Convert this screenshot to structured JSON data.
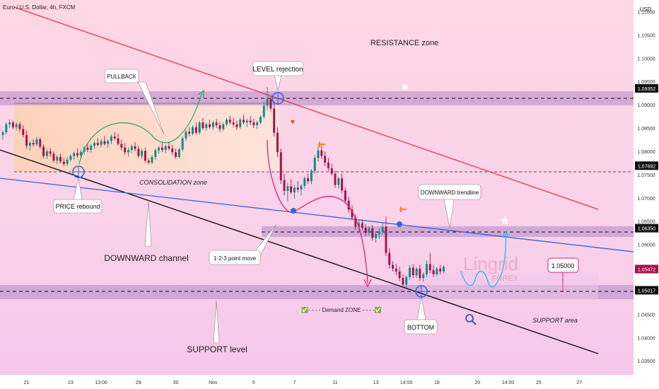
{
  "header": {
    "title": "Euro / U.S. Dollar, 4h, FXCM",
    "currency": "USD"
  },
  "chart_data": {
    "type": "candlestick",
    "y_ticks": [
      "1.11000",
      "1.10500",
      "1.10000",
      "1.09500",
      "1.09000",
      "1.08500",
      "1.08000",
      "1.07500",
      "1.07000",
      "1.06500",
      "1.06000",
      "1.05500",
      "1.05000",
      "1.04500",
      "1.04000",
      "1.03500"
    ],
    "y_tick_values": [
      1.11,
      1.105,
      1.1,
      1.095,
      1.09,
      1.085,
      1.08,
      1.075,
      1.07,
      1.065,
      1.06,
      1.055,
      1.05,
      1.045,
      1.04,
      1.035
    ],
    "x_ticks": [
      "21",
      "23",
      "13:00",
      "28",
      "30",
      "Nov",
      "5",
      "7",
      "11",
      "13",
      "14:00",
      "18",
      "20",
      "14:00",
      "25",
      "27"
    ],
    "x_tick_index": [
      7,
      20,
      29,
      40,
      51,
      62,
      74,
      86,
      98,
      110,
      119,
      128,
      140,
      149,
      158,
      170
    ],
    "ylim": [
      1.032,
      1.1125
    ],
    "xlim": [
      0,
      186
    ],
    "candles": [
      {
        "o": 1.0835,
        "h": 1.0845,
        "l": 1.0825,
        "c": 1.0841
      },
      {
        "o": 1.0841,
        "h": 1.0862,
        "l": 1.0836,
        "c": 1.0858
      },
      {
        "o": 1.0858,
        "h": 1.0868,
        "l": 1.085,
        "c": 1.0862
      },
      {
        "o": 1.0862,
        "h": 1.0866,
        "l": 1.0848,
        "c": 1.0852
      },
      {
        "o": 1.0852,
        "h": 1.0862,
        "l": 1.0845,
        "c": 1.0858
      },
      {
        "o": 1.0858,
        "h": 1.0863,
        "l": 1.0842,
        "c": 1.0848
      },
      {
        "o": 1.0848,
        "h": 1.0856,
        "l": 1.083,
        "c": 1.0835
      },
      {
        "o": 1.0835,
        "h": 1.0845,
        "l": 1.0805,
        "c": 1.0812
      },
      {
        "o": 1.0812,
        "h": 1.0822,
        "l": 1.0802,
        "c": 1.0818
      },
      {
        "o": 1.0818,
        "h": 1.0826,
        "l": 1.081,
        "c": 1.0815
      },
      {
        "o": 1.0815,
        "h": 1.0831,
        "l": 1.081,
        "c": 1.0826
      },
      {
        "o": 1.0826,
        "h": 1.083,
        "l": 1.0805,
        "c": 1.081
      },
      {
        "o": 1.081,
        "h": 1.0815,
        "l": 1.0785,
        "c": 1.079
      },
      {
        "o": 1.079,
        "h": 1.0805,
        "l": 1.0784,
        "c": 1.08
      },
      {
        "o": 1.08,
        "h": 1.0808,
        "l": 1.0788,
        "c": 1.0795
      },
      {
        "o": 1.0795,
        "h": 1.08,
        "l": 1.0776,
        "c": 1.078
      },
      {
        "o": 1.078,
        "h": 1.0792,
        "l": 1.0772,
        "c": 1.0788
      },
      {
        "o": 1.0788,
        "h": 1.0795,
        "l": 1.0774,
        "c": 1.0778
      },
      {
        "o": 1.0778,
        "h": 1.0786,
        "l": 1.0768,
        "c": 1.0773
      },
      {
        "o": 1.0773,
        "h": 1.0788,
        "l": 1.0768,
        "c": 1.0782
      },
      {
        "o": 1.0782,
        "h": 1.0794,
        "l": 1.0778,
        "c": 1.079
      },
      {
        "o": 1.079,
        "h": 1.08,
        "l": 1.0782,
        "c": 1.0796
      },
      {
        "o": 1.0796,
        "h": 1.0806,
        "l": 1.0786,
        "c": 1.0791
      },
      {
        "o": 1.0791,
        "h": 1.0803,
        "l": 1.0785,
        "c": 1.0799
      },
      {
        "o": 1.0799,
        "h": 1.0812,
        "l": 1.0793,
        "c": 1.0808
      },
      {
        "o": 1.0808,
        "h": 1.0816,
        "l": 1.0798,
        "c": 1.0803
      },
      {
        "o": 1.0803,
        "h": 1.0815,
        "l": 1.0797,
        "c": 1.0812
      },
      {
        "o": 1.0812,
        "h": 1.0822,
        "l": 1.0805,
        "c": 1.0818
      },
      {
        "o": 1.0818,
        "h": 1.0828,
        "l": 1.081,
        "c": 1.0814
      },
      {
        "o": 1.0814,
        "h": 1.0826,
        "l": 1.0808,
        "c": 1.0822
      },
      {
        "o": 1.0822,
        "h": 1.0832,
        "l": 1.0812,
        "c": 1.0816
      },
      {
        "o": 1.0816,
        "h": 1.0826,
        "l": 1.0808,
        "c": 1.0822
      },
      {
        "o": 1.0822,
        "h": 1.0836,
        "l": 1.0816,
        "c": 1.0832
      },
      {
        "o": 1.0832,
        "h": 1.0842,
        "l": 1.0824,
        "c": 1.0828
      },
      {
        "o": 1.0828,
        "h": 1.0838,
        "l": 1.0812,
        "c": 1.0816
      },
      {
        "o": 1.0816,
        "h": 1.0825,
        "l": 1.0802,
        "c": 1.0808
      },
      {
        "o": 1.0808,
        "h": 1.0818,
        "l": 1.0792,
        "c": 1.0798
      },
      {
        "o": 1.0798,
        "h": 1.0808,
        "l": 1.0788,
        "c": 1.0803
      },
      {
        "o": 1.0803,
        "h": 1.0815,
        "l": 1.0796,
        "c": 1.0811
      },
      {
        "o": 1.0811,
        "h": 1.082,
        "l": 1.08,
        "c": 1.0805
      },
      {
        "o": 1.0805,
        "h": 1.0812,
        "l": 1.0786,
        "c": 1.079
      },
      {
        "o": 1.079,
        "h": 1.0806,
        "l": 1.0784,
        "c": 1.0801
      },
      {
        "o": 1.0801,
        "h": 1.0808,
        "l": 1.0776,
        "c": 1.078
      },
      {
        "o": 1.078,
        "h": 1.0786,
        "l": 1.0772,
        "c": 1.0776
      },
      {
        "o": 1.0776,
        "h": 1.0792,
        "l": 1.0772,
        "c": 1.0788
      },
      {
        "o": 1.0788,
        "h": 1.0806,
        "l": 1.0782,
        "c": 1.0802
      },
      {
        "o": 1.0802,
        "h": 1.0812,
        "l": 1.0795,
        "c": 1.0808
      },
      {
        "o": 1.0808,
        "h": 1.0818,
        "l": 1.0798,
        "c": 1.0803
      },
      {
        "o": 1.0803,
        "h": 1.0815,
        "l": 1.0796,
        "c": 1.0811
      },
      {
        "o": 1.0811,
        "h": 1.082,
        "l": 1.0802,
        "c": 1.0806
      },
      {
        "o": 1.0806,
        "h": 1.0814,
        "l": 1.0792,
        "c": 1.0798
      },
      {
        "o": 1.0798,
        "h": 1.0806,
        "l": 1.0784,
        "c": 1.0788
      },
      {
        "o": 1.0788,
        "h": 1.0808,
        "l": 1.0784,
        "c": 1.0804
      },
      {
        "o": 1.0804,
        "h": 1.0832,
        "l": 1.08,
        "c": 1.0828
      },
      {
        "o": 1.0828,
        "h": 1.0846,
        "l": 1.0822,
        "c": 1.0842
      },
      {
        "o": 1.0842,
        "h": 1.0852,
        "l": 1.0832,
        "c": 1.0838
      },
      {
        "o": 1.0838,
        "h": 1.0856,
        "l": 1.0834,
        "c": 1.0852
      },
      {
        "o": 1.0852,
        "h": 1.0862,
        "l": 1.0836,
        "c": 1.084
      },
      {
        "o": 1.084,
        "h": 1.0866,
        "l": 1.0836,
        "c": 1.0862
      },
      {
        "o": 1.0862,
        "h": 1.0872,
        "l": 1.0846,
        "c": 1.085
      },
      {
        "o": 1.085,
        "h": 1.0862,
        "l": 1.0844,
        "c": 1.0858
      },
      {
        "o": 1.0858,
        "h": 1.0868,
        "l": 1.0848,
        "c": 1.0852
      },
      {
        "o": 1.0852,
        "h": 1.0866,
        "l": 1.0846,
        "c": 1.0862
      },
      {
        "o": 1.0862,
        "h": 1.087,
        "l": 1.085,
        "c": 1.0856
      },
      {
        "o": 1.0856,
        "h": 1.0864,
        "l": 1.0842,
        "c": 1.0848
      },
      {
        "o": 1.0848,
        "h": 1.0862,
        "l": 1.0844,
        "c": 1.0858
      },
      {
        "o": 1.0858,
        "h": 1.0872,
        "l": 1.0854,
        "c": 1.0868
      },
      {
        "o": 1.0868,
        "h": 1.0876,
        "l": 1.0858,
        "c": 1.0862
      },
      {
        "o": 1.0862,
        "h": 1.0872,
        "l": 1.0852,
        "c": 1.0858
      },
      {
        "o": 1.0858,
        "h": 1.0866,
        "l": 1.0846,
        "c": 1.0852
      },
      {
        "o": 1.0852,
        "h": 1.0872,
        "l": 1.0848,
        "c": 1.0868
      },
      {
        "o": 1.0868,
        "h": 1.0878,
        "l": 1.0858,
        "c": 1.0862
      },
      {
        "o": 1.0862,
        "h": 1.087,
        "l": 1.0852,
        "c": 1.0866
      },
      {
        "o": 1.0866,
        "h": 1.0876,
        "l": 1.0856,
        "c": 1.0862
      },
      {
        "o": 1.0862,
        "h": 1.087,
        "l": 1.085,
        "c": 1.0856
      },
      {
        "o": 1.0856,
        "h": 1.0866,
        "l": 1.0848,
        "c": 1.0862
      },
      {
        "o": 1.0862,
        "h": 1.0878,
        "l": 1.0858,
        "c": 1.0874
      },
      {
        "o": 1.0874,
        "h": 1.0906,
        "l": 1.087,
        "c": 1.0898
      },
      {
        "o": 1.0898,
        "h": 1.0938,
        "l": 1.0888,
        "c": 1.0912
      },
      {
        "o": 1.0912,
        "h": 1.0918,
        "l": 1.0886,
        "c": 1.0892
      },
      {
        "o": 1.0892,
        "h": 1.0902,
        "l": 1.0832,
        "c": 1.084
      },
      {
        "o": 1.084,
        "h": 1.0852,
        "l": 1.0788,
        "c": 1.0798
      },
      {
        "o": 1.0798,
        "h": 1.0806,
        "l": 1.073,
        "c": 1.0738
      },
      {
        "o": 1.0738,
        "h": 1.0752,
        "l": 1.0705,
        "c": 1.0715
      },
      {
        "o": 1.0715,
        "h": 1.0732,
        "l": 1.0692,
        "c": 1.0725
      },
      {
        "o": 1.0725,
        "h": 1.074,
        "l": 1.0708,
        "c": 1.0712
      },
      {
        "o": 1.0712,
        "h": 1.0728,
        "l": 1.0698,
        "c": 1.0722
      },
      {
        "o": 1.0722,
        "h": 1.0736,
        "l": 1.0712,
        "c": 1.0718
      },
      {
        "o": 1.0718,
        "h": 1.073,
        "l": 1.0705,
        "c": 1.0726
      },
      {
        "o": 1.0726,
        "h": 1.0746,
        "l": 1.072,
        "c": 1.0742
      },
      {
        "o": 1.0742,
        "h": 1.0752,
        "l": 1.073,
        "c": 1.0736
      },
      {
        "o": 1.0736,
        "h": 1.0762,
        "l": 1.073,
        "c": 1.0758
      },
      {
        "o": 1.0758,
        "h": 1.0792,
        "l": 1.0752,
        "c": 1.0786
      },
      {
        "o": 1.0786,
        "h": 1.0812,
        "l": 1.0778,
        "c": 1.0802
      },
      {
        "o": 1.0802,
        "h": 1.0812,
        "l": 1.0784,
        "c": 1.079
      },
      {
        "o": 1.079,
        "h": 1.08,
        "l": 1.0768,
        "c": 1.0776
      },
      {
        "o": 1.0776,
        "h": 1.0786,
        "l": 1.0758,
        "c": 1.0764
      },
      {
        "o": 1.0764,
        "h": 1.0774,
        "l": 1.0748,
        "c": 1.0752
      },
      {
        "o": 1.0752,
        "h": 1.0758,
        "l": 1.0722,
        "c": 1.0728
      },
      {
        "o": 1.0728,
        "h": 1.0746,
        "l": 1.072,
        "c": 1.0742
      },
      {
        "o": 1.0742,
        "h": 1.0752,
        "l": 1.071,
        "c": 1.0716
      },
      {
        "o": 1.0716,
        "h": 1.0722,
        "l": 1.0688,
        "c": 1.0694
      },
      {
        "o": 1.0694,
        "h": 1.0702,
        "l": 1.0668,
        "c": 1.0675
      },
      {
        "o": 1.0675,
        "h": 1.0685,
        "l": 1.0652,
        "c": 1.0658
      },
      {
        "o": 1.0658,
        "h": 1.0664,
        "l": 1.0632,
        "c": 1.0638
      },
      {
        "o": 1.0638,
        "h": 1.0652,
        "l": 1.0628,
        "c": 1.0646
      },
      {
        "o": 1.0646,
        "h": 1.0654,
        "l": 1.063,
        "c": 1.0636
      },
      {
        "o": 1.0636,
        "h": 1.0644,
        "l": 1.0618,
        "c": 1.0625
      },
      {
        "o": 1.0625,
        "h": 1.064,
        "l": 1.062,
        "c": 1.0635
      },
      {
        "o": 1.0635,
        "h": 1.0642,
        "l": 1.0608,
        "c": 1.0614
      },
      {
        "o": 1.0614,
        "h": 1.0628,
        "l": 1.0604,
        "c": 1.0622
      },
      {
        "o": 1.0622,
        "h": 1.0635,
        "l": 1.0612,
        "c": 1.0628
      },
      {
        "o": 1.0628,
        "h": 1.0648,
        "l": 1.0622,
        "c": 1.0638
      },
      {
        "o": 1.0638,
        "h": 1.066,
        "l": 1.0575,
        "c": 1.0582
      },
      {
        "o": 1.0582,
        "h": 1.0592,
        "l": 1.0548,
        "c": 1.0556
      },
      {
        "o": 1.0556,
        "h": 1.0564,
        "l": 1.0542,
        "c": 1.0548
      },
      {
        "o": 1.0548,
        "h": 1.0558,
        "l": 1.0534,
        "c": 1.0542
      },
      {
        "o": 1.0542,
        "h": 1.0552,
        "l": 1.0522,
        "c": 1.0528
      },
      {
        "o": 1.0528,
        "h": 1.0536,
        "l": 1.0508,
        "c": 1.0514
      },
      {
        "o": 1.0514,
        "h": 1.0534,
        "l": 1.0506,
        "c": 1.053
      },
      {
        "o": 1.053,
        "h": 1.0556,
        "l": 1.0524,
        "c": 1.055
      },
      {
        "o": 1.055,
        "h": 1.0558,
        "l": 1.0528,
        "c": 1.0534
      },
      {
        "o": 1.0534,
        "h": 1.0552,
        "l": 1.0528,
        "c": 1.0548
      },
      {
        "o": 1.0548,
        "h": 1.0556,
        "l": 1.0522,
        "c": 1.0528
      },
      {
        "o": 1.0528,
        "h": 1.054,
        "l": 1.052,
        "c": 1.0536
      },
      {
        "o": 1.0536,
        "h": 1.0566,
        "l": 1.053,
        "c": 1.0558
      },
      {
        "o": 1.0558,
        "h": 1.0582,
        "l": 1.0538,
        "c": 1.0545
      },
      {
        "o": 1.0545,
        "h": 1.0556,
        "l": 1.053,
        "c": 1.0536
      },
      {
        "o": 1.0536,
        "h": 1.0552,
        "l": 1.0532,
        "c": 1.0548
      },
      {
        "o": 1.0548,
        "h": 1.0556,
        "l": 1.0536,
        "c": 1.0542
      },
      {
        "o": 1.0542,
        "h": 1.0556,
        "l": 1.0538,
        "c": 1.0552
      }
    ],
    "price_labels": [
      {
        "text": "1.09352",
        "value": 1.09352
      },
      {
        "text": "1.07692",
        "value": 1.07692
      },
      {
        "text": "1.06350",
        "value": 1.0635
      },
      {
        "text": "1.05472",
        "value": 1.05472
      },
      {
        "text": "1.05017",
        "value": 1.05017
      }
    ],
    "annotations": {
      "resistance_zone": "RESISTANCE zone",
      "level_rejection": "LEVEL rejection",
      "pullback": "PULLBACK",
      "consolidation_zone": "CONSOLIDATION zone",
      "price_rebound": "PRICE rebound",
      "downward_channel": "DOWNWARD channel",
      "point_move": "1-2-3 point move",
      "downward_trendline": "DOWNWARD trendline",
      "target_level": "1.05000",
      "demand_zone": "✅- - - -  Demand ZONE - - - -✅",
      "bottom": "BOTTOM",
      "support_area": "SUPPORT area",
      "support_level": "SUPPORT level",
      "watermark_main": "Lingrid",
      "watermark_sub": "FOREX"
    },
    "colors": {
      "bull": "#0d8c82",
      "bear": "#a8114a",
      "resistance_line": "#ee3344",
      "channel_line": "#111111",
      "trend_line": "#3366dd",
      "zone": "#c48cc6",
      "consolidation_fill": "#ffd3b8",
      "projection": "#33bbee",
      "pullback_arrow": "#33aa66",
      "move_arrow": "#dd2277"
    }
  }
}
